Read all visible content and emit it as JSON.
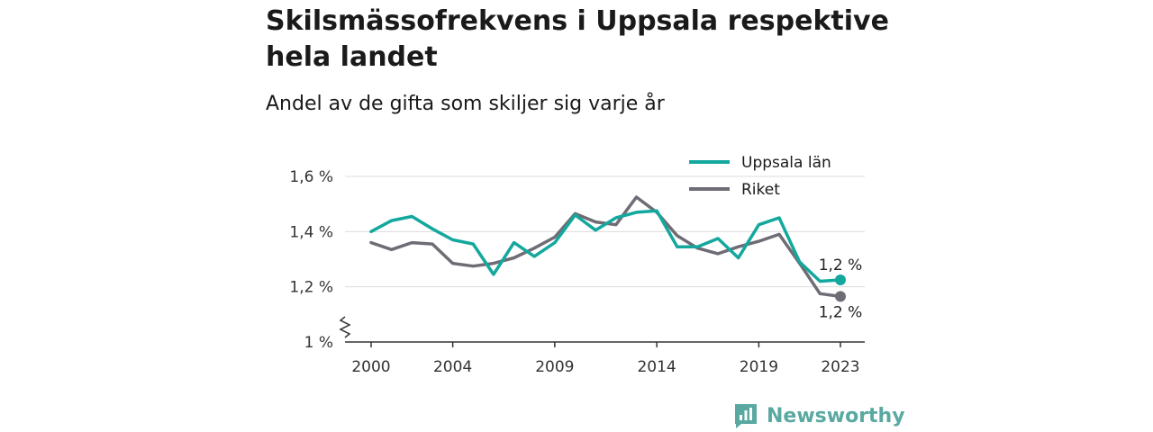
{
  "title": "Skilsmässofrekvens i Uppsala respektive hela landet",
  "subtitle": "Andel av de gifta som skiljer sig varje år",
  "brand": {
    "name": "Newsworthy",
    "color": "#5aa9a1",
    "icon": "newsworthy-logo-icon"
  },
  "chart_data": {
    "type": "line",
    "x": [
      2000,
      2001,
      2002,
      2003,
      2004,
      2005,
      2006,
      2007,
      2008,
      2009,
      2010,
      2011,
      2012,
      2013,
      2014,
      2015,
      2016,
      2017,
      2018,
      2019,
      2020,
      2021,
      2022,
      2023
    ],
    "x_ticks": [
      "2000",
      "2004",
      "2009",
      "2014",
      "2019",
      "2023"
    ],
    "y_ticks": [
      "1 %",
      "1,2 %",
      "1,4 %",
      "1,6 %"
    ],
    "ylim": [
      1.0,
      1.6
    ],
    "y_axis_break": true,
    "grid": true,
    "legend_position": "top-right",
    "series": [
      {
        "name": "Uppsala län",
        "color": "#13a89e",
        "values": [
          1.4,
          1.44,
          1.455,
          1.41,
          1.37,
          1.355,
          1.245,
          1.36,
          1.31,
          1.36,
          1.46,
          1.405,
          1.45,
          1.47,
          1.475,
          1.345,
          1.345,
          1.375,
          1.305,
          1.425,
          1.45,
          1.29,
          1.22,
          1.225
        ],
        "end_label": "1,2 %"
      },
      {
        "name": "Riket",
        "color": "#6f6c75",
        "values": [
          1.36,
          1.335,
          1.36,
          1.355,
          1.285,
          1.275,
          1.285,
          1.305,
          1.34,
          1.38,
          1.465,
          1.435,
          1.425,
          1.525,
          1.47,
          1.385,
          1.34,
          1.32,
          1.345,
          1.365,
          1.39,
          1.285,
          1.175,
          1.165
        ],
        "end_label": "1,2 %"
      }
    ]
  }
}
